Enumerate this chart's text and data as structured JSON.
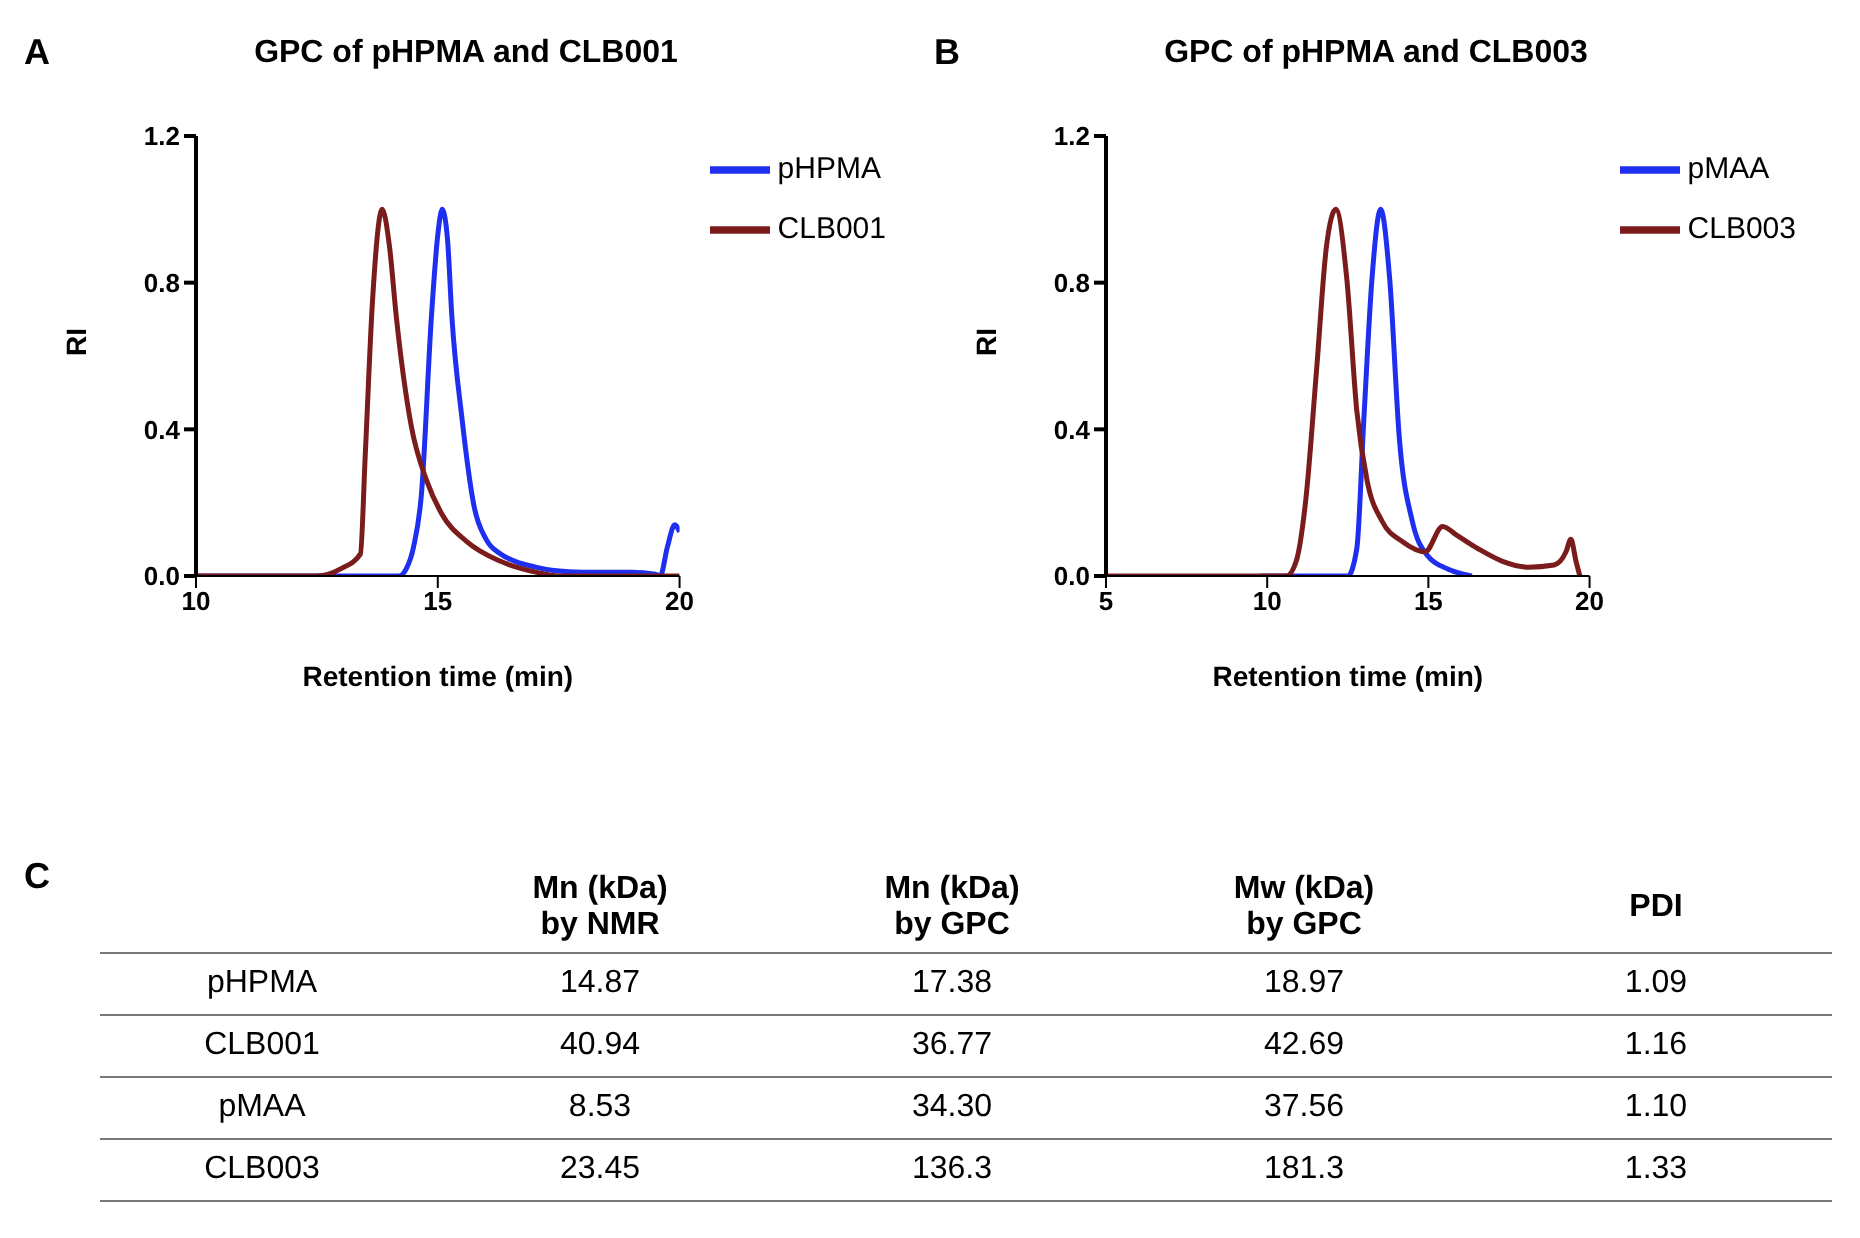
{
  "chart_data": [
    {
      "type": "line",
      "title": "GPC of pHPMA and CLB001",
      "annotations": [
        "A"
      ],
      "xlabel": "Retention time (min)",
      "ylabel": "RI",
      "xlim": [
        10,
        20
      ],
      "xticks": [
        10,
        15,
        20
      ],
      "ylim": [
        0,
        1.2
      ],
      "yticks": [
        {
          "value": 0,
          "label": "0.0"
        },
        {
          "value": 0.4,
          "label": "0.4"
        },
        {
          "value": 0.8,
          "label": "0.8"
        },
        {
          "value": 1.2,
          "label": "1.2"
        }
      ],
      "legend": "top right",
      "grid": false,
      "marker": "none",
      "line_style": "solid",
      "series": [
        {
          "name": "pHPMA",
          "color": "#1f2ff0",
          "x": [
            10,
            12,
            14.2,
            14.35,
            14.5,
            14.66,
            14.87,
            15.0,
            15.09,
            15.2,
            15.29,
            15.5,
            15.75,
            16.0,
            16.3,
            16.6,
            17.0,
            17.4,
            18,
            18.5,
            19,
            19.5,
            19.6,
            19.75,
            19.9,
            20
          ],
          "values": [
            0,
            0,
            0,
            0.02,
            0.08,
            0.22,
            0.71,
            0.93,
            1.0,
            0.92,
            0.71,
            0.43,
            0.19,
            0.1,
            0.06,
            0.04,
            0.025,
            0.015,
            0.01,
            0.01,
            0.01,
            0.005,
            0,
            0.08,
            0.14,
            0.12
          ]
        },
        {
          "name": "CLB001",
          "color": "#7b1c1c",
          "x": [
            10,
            12,
            12.5,
            13.0,
            13.4,
            13.5,
            13.65,
            13.85,
            14.0,
            14.14,
            14.45,
            14.77,
            15.08,
            15.6,
            16.3,
            17.05,
            17.5,
            20
          ],
          "values": [
            0,
            0,
            0,
            0.02,
            0.06,
            0.33,
            0.75,
            1.0,
            0.9,
            0.71,
            0.41,
            0.26,
            0.17,
            0.094,
            0.04,
            0.01,
            0,
            0
          ]
        }
      ]
    },
    {
      "type": "line",
      "title": "GPC of pHPMA and CLB003",
      "annotations": [
        "B"
      ],
      "xlabel": "Retention time (min)",
      "ylabel": "RI",
      "xlim": [
        5,
        20
      ],
      "xticks": [
        5,
        10,
        15,
        20
      ],
      "ylim": [
        0,
        1.2
      ],
      "yticks": [
        {
          "value": 0,
          "label": "0.0"
        },
        {
          "value": 0.4,
          "label": "0.4"
        },
        {
          "value": 0.8,
          "label": "0.8"
        },
        {
          "value": 1.2,
          "label": "1.2"
        }
      ],
      "legend": "top right",
      "grid": false,
      "marker": "none",
      "line_style": "solid",
      "series": [
        {
          "name": "pMAA",
          "color": "#1f2ff0",
          "x": [
            9.8,
            12.5,
            12.78,
            13.0,
            13.25,
            13.52,
            13.8,
            14.1,
            14.5,
            14.97,
            15.6,
            16.35
          ],
          "values": [
            0,
            0,
            0.075,
            0.43,
            0.81,
            1.0,
            0.81,
            0.375,
            0.15,
            0.056,
            0.019,
            0
          ]
        },
        {
          "name": "CLB003",
          "color": "#7b1c1c",
          "x": [
            5,
            10.6,
            10.9,
            11.2,
            11.53,
            11.84,
            12.13,
            12.47,
            12.78,
            13.1,
            13.56,
            14.19,
            14.9,
            15.44,
            15.9,
            16.53,
            17.3,
            18.1,
            18.9,
            19.27,
            19.42,
            19.58,
            19.7
          ],
          "values": [
            0,
            0,
            0.04,
            0.21,
            0.56,
            0.9,
            1.0,
            0.81,
            0.45,
            0.26,
            0.15,
            0.094,
            0.066,
            0.135,
            0.11,
            0.075,
            0.04,
            0.024,
            0.03,
            0.066,
            0.1,
            0.04,
            0
          ]
        }
      ]
    },
    {
      "type": "heatmap",
      "annotations": [
        "C"
      ],
      "categories": [
        "Mn (kDa) by NMR",
        "Mn (kDa) by GPC",
        "Mw (kDa) by GPC",
        "PDI"
      ],
      "y_categories": [
        "pHPMA",
        "CLB001",
        "pMAA",
        "CLB003"
      ],
      "cells": [
        [
          14.87,
          17.38,
          18.97,
          1.09
        ],
        [
          40.94,
          36.77,
          42.69,
          1.16
        ],
        [
          8.53,
          34.3,
          37.56,
          1.1
        ],
        [
          23.45,
          136.3,
          181.3,
          1.33
        ]
      ],
      "cell_labels": [
        [
          "14.87",
          "17.38",
          "18.97",
          "1.09"
        ],
        [
          "40.94",
          "36.77",
          "42.69",
          "1.16"
        ],
        [
          "8.53",
          "34.30",
          "37.56",
          "1.10"
        ],
        [
          "23.45",
          "136.3",
          "181.3",
          "1.33"
        ]
      ]
    }
  ]
}
